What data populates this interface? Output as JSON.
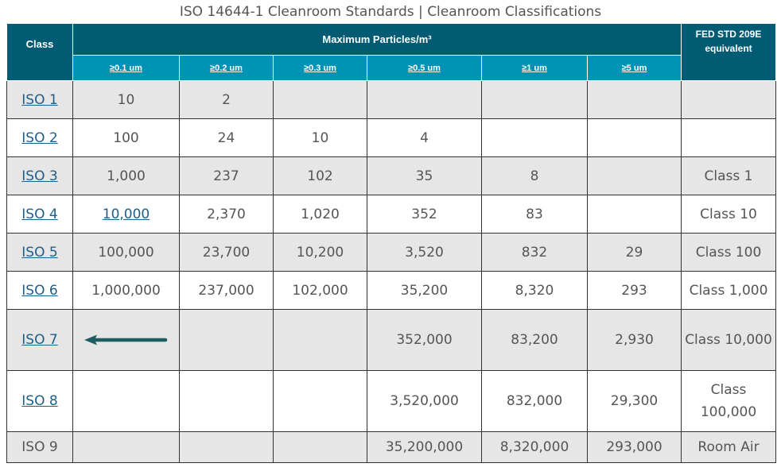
{
  "caption": "ISO 14644-1 Cleanroom Standards | Cleanroom Classifications",
  "header": {
    "class": "Class",
    "maximum": "Maximum  Particles/m³",
    "fed": "FED STD 209E equivalent",
    "sizes": [
      "≥0.1 um",
      "≥0.2 um",
      "≥0.3 um",
      "≥0.5 um",
      "≥1 um",
      "≥5 um"
    ]
  },
  "rows": [
    {
      "cls": "ISO 1",
      "c1": "10",
      "c2": "2",
      "c3": "",
      "c4": "",
      "c5": "",
      "c6": "",
      "fed": ""
    },
    {
      "cls": "ISO 2",
      "c1": "100",
      "c2": "24",
      "c3": "10",
      "c4": "4",
      "c5": "",
      "c6": "",
      "fed": ""
    },
    {
      "cls": "ISO 3",
      "c1": "1,000",
      "c2": "237",
      "c3": "102",
      "c4": "35",
      "c5": "8",
      "c6": "",
      "fed": "Class 1"
    },
    {
      "cls": "ISO 4",
      "c1": "10,000",
      "c2": "2,370",
      "c3": "1,020",
      "c4": "352",
      "c5": "83",
      "c6": "",
      "fed": "Class 10"
    },
    {
      "cls": "ISO 5",
      "c1": "100,000",
      "c2": "23,700",
      "c3": "10,200",
      "c4": "3,520",
      "c5": "832",
      "c6": "29",
      "fed": "Class 100"
    },
    {
      "cls": "ISO 6",
      "c1": "1,000,000",
      "c2": "237,000",
      "c3": "102,000",
      "c4": "35,200",
      "c5": "8,320",
      "c6": "293",
      "fed": "Class 1,000"
    },
    {
      "cls": "ISO 7",
      "c1": "",
      "c2": "",
      "c3": "",
      "c4": "352,000",
      "c5": "83,200",
      "c6": "2,930",
      "fed": "Class 10,000"
    },
    {
      "cls": "ISO 8",
      "c1": "",
      "c2": "",
      "c3": "",
      "c4": "3,520,000",
      "c5": "832,000",
      "c6": "29,300",
      "fed": "Class 100,000"
    },
    {
      "cls": "ISO 9",
      "c1": "",
      "c2": "",
      "c3": "",
      "c4": "35,200,000",
      "c5": "8,320,000",
      "c6": "293,000",
      "fed": "Room Air"
    }
  ],
  "colors": {
    "header": "#005b73",
    "subheader": "#0093b5",
    "link": "#1d5f87",
    "arrow": "#1c5e63",
    "stripe": "#e6e6e6"
  }
}
